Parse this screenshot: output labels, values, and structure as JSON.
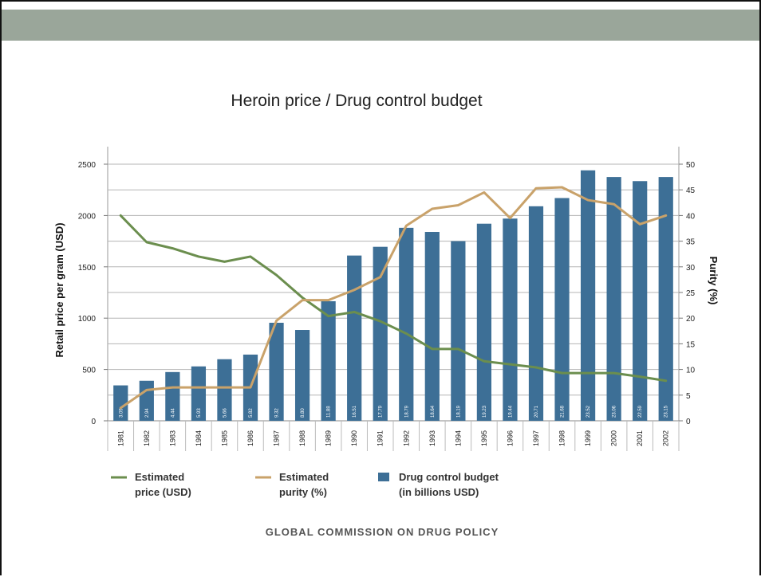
{
  "source": "GLOBAL COMMISSION ON DRUG POLICY",
  "chart_data": {
    "type": "bar",
    "title": "Heroin price / Drug control budget",
    "ylabel": "Retail price per gram (USD)",
    "y2label": "Purity (%)",
    "ylim": [
      0,
      2500
    ],
    "yticks": [
      0,
      500,
      1000,
      1500,
      2000,
      2500
    ],
    "y2lim": [
      0,
      50
    ],
    "y2ticks": [
      0,
      5,
      10,
      15,
      20,
      25,
      30,
      35,
      40,
      45,
      50
    ],
    "categories": [
      "1981",
      "1982",
      "1983",
      "1984",
      "1985",
      "1986",
      "1987",
      "1988",
      "1989",
      "1990",
      "1991",
      "1992",
      "1993",
      "1994",
      "1995",
      "1996",
      "1997",
      "1998",
      "1999",
      "2000",
      "2001",
      "2002"
    ],
    "grid": true,
    "legend_position": "bottom",
    "series": [
      {
        "name": "Drug control budget (in billions USD)",
        "legend_lines": [
          "Drug control budget",
          "(in billions USD)"
        ],
        "kind": "bar",
        "axis": "left",
        "color": "#3d6f96",
        "labels": [
          "3.09",
          "2.94",
          "4.44",
          "5.93",
          "5.66",
          "5.82",
          "9.32",
          "8.80",
          "11.88",
          "16.51",
          "17.79",
          "18.79",
          "18.64",
          "18.19",
          "19.23",
          "19.44",
          "20.71",
          "21.68",
          "23.52",
          "23.06",
          "22.59",
          "23.15"
        ],
        "values": [
          345,
          390,
          475,
          530,
          600,
          645,
          955,
          885,
          1165,
          1610,
          1695,
          1880,
          1840,
          1750,
          1920,
          1970,
          2090,
          2170,
          2440,
          2375,
          2335,
          2375
        ]
      },
      {
        "name": "Estimated price (USD)",
        "legend_lines": [
          "Estimated",
          "price (USD)"
        ],
        "kind": "line",
        "axis": "left",
        "color": "#6b8e4e",
        "values": [
          2000,
          1740,
          1680,
          1600,
          1550,
          1600,
          1420,
          1200,
          1020,
          1060,
          970,
          850,
          700,
          700,
          580,
          550,
          520,
          465,
          465,
          465,
          430,
          390
        ]
      },
      {
        "name": "Estimated purity (%)",
        "legend_lines": [
          "Estimated",
          "purity (%)"
        ],
        "kind": "line",
        "axis": "right",
        "color": "#c9a26a",
        "values": [
          2.5,
          6,
          6.5,
          6.5,
          6.5,
          6.5,
          19.5,
          23.5,
          23.5,
          25.5,
          28,
          38,
          41.3,
          42,
          44.5,
          39.5,
          45.3,
          45.5,
          43,
          42.2,
          38.3,
          40
        ]
      }
    ]
  }
}
